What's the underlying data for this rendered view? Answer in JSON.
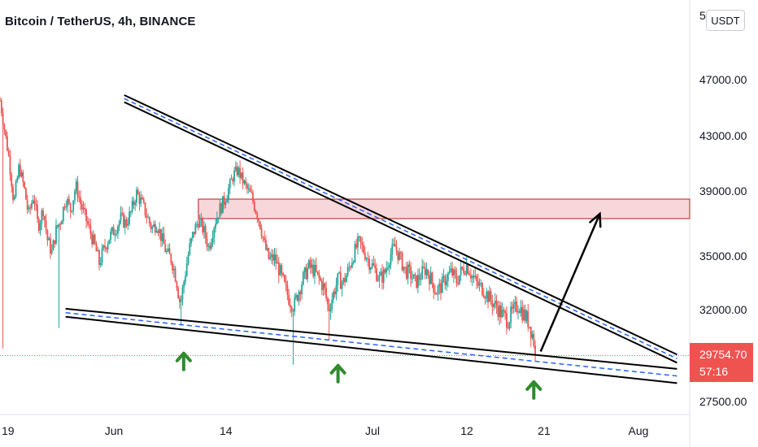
{
  "header": {
    "title": "Bitcoin / TetherUS, 4h, BINANCE",
    "currency_button": "USDT"
  },
  "last_price": {
    "value": "29754.70",
    "countdown": "57:16",
    "color": "#ef5350"
  },
  "colors": {
    "up": "#26a69a",
    "down": "#ef5350",
    "trendline": "#000000",
    "midline": "#2962ff",
    "zone_fill": "#f8d7da",
    "zone_border": "#b71c1c",
    "arrow_marker": "#2e8b2e"
  },
  "chart_data": {
    "type": "candlestick",
    "symbol": "BTCUSDT",
    "timeframe": "4h",
    "exchange": "BINANCE",
    "y_ticks": [
      27500,
      32000,
      35000,
      39000,
      43000,
      47000
    ],
    "y_tick_labels": [
      "27500.00",
      "32000.00",
      "35000.00",
      "39000.00",
      "43000.00",
      "47000.00"
    ],
    "y_top_partial_label": "5",
    "x_tick_labels": [
      "19",
      "Jun",
      "14",
      "Jul",
      "12",
      "21",
      "Aug"
    ],
    "x_tick_days": [
      -13,
      0,
      13,
      30,
      41,
      50,
      61
    ],
    "x_tick_dates": [
      "2021-05-19",
      "2021-06-01",
      "2021-06-14",
      "2021-07-01",
      "2021-07-12",
      "2021-07-21",
      "2021-08-01"
    ],
    "x_range_days": [
      -13.2,
      65.5
    ],
    "candles_close_path": [
      [
        -13.2,
        45500
      ],
      [
        -12.7,
        43500
      ],
      [
        -12.2,
        41500
      ],
      [
        -11.6,
        38200
      ],
      [
        -11.0,
        40800
      ],
      [
        -10.4,
        39200
      ],
      [
        -9.9,
        37500
      ],
      [
        -9.3,
        38800
      ],
      [
        -8.8,
        36800
      ],
      [
        -8.2,
        37900
      ],
      [
        -7.7,
        36000
      ],
      [
        -7.2,
        35200
      ],
      [
        -6.7,
        36600
      ],
      [
        -6.1,
        37300
      ],
      [
        -5.6,
        38600
      ],
      [
        -5.0,
        37800
      ],
      [
        -4.4,
        39400
      ],
      [
        -3.8,
        38100
      ],
      [
        -3.2,
        37200
      ],
      [
        -2.7,
        36400
      ],
      [
        -2.2,
        35600
      ],
      [
        -1.7,
        34600
      ],
      [
        -1.1,
        35500
      ],
      [
        -0.5,
        36200
      ],
      [
        0.2,
        36700
      ],
      [
        0.8,
        37300
      ],
      [
        1.4,
        37000
      ],
      [
        2.0,
        37700
      ],
      [
        2.6,
        38900
      ],
      [
        3.2,
        38300
      ],
      [
        3.8,
        37500
      ],
      [
        4.4,
        36700
      ],
      [
        5.0,
        37000
      ],
      [
        5.6,
        36000
      ],
      [
        6.1,
        35200
      ],
      [
        6.7,
        34800
      ],
      [
        7.2,
        33800
      ],
      [
        7.7,
        32300
      ],
      [
        8.2,
        33800
      ],
      [
        8.7,
        35300
      ],
      [
        9.2,
        36400
      ],
      [
        9.8,
        37200
      ],
      [
        10.4,
        36600
      ],
      [
        11.0,
        35500
      ],
      [
        11.6,
        36900
      ],
      [
        12.2,
        37800
      ],
      [
        12.8,
        38400
      ],
      [
        13.4,
        39300
      ],
      [
        13.9,
        40200
      ],
      [
        14.4,
        40500
      ],
      [
        14.9,
        39800
      ],
      [
        15.4,
        39200
      ],
      [
        16.0,
        38600
      ],
      [
        16.5,
        37800
      ],
      [
        17.0,
        36900
      ],
      [
        17.5,
        35600
      ],
      [
        18.0,
        34800
      ],
      [
        18.6,
        34900
      ],
      [
        19.2,
        34200
      ],
      [
        19.8,
        33300
      ],
      [
        20.4,
        32500
      ],
      [
        20.9,
        32200
      ],
      [
        21.4,
        33000
      ],
      [
        22.0,
        33800
      ],
      [
        22.6,
        34400
      ],
      [
        23.2,
        34200
      ],
      [
        23.8,
        33700
      ],
      [
        24.4,
        33200
      ],
      [
        24.9,
        32000
      ],
      [
        25.4,
        32800
      ],
      [
        26.0,
        33700
      ],
      [
        26.6,
        33500
      ],
      [
        27.2,
        34200
      ],
      [
        27.8,
        35100
      ],
      [
        28.4,
        35900
      ],
      [
        29.0,
        35300
      ],
      [
        29.6,
        34700
      ],
      [
        30.2,
        34300
      ],
      [
        30.8,
        33700
      ],
      [
        31.4,
        34000
      ],
      [
        32.0,
        35000
      ],
      [
        32.6,
        35600
      ],
      [
        33.2,
        34900
      ],
      [
        33.8,
        34200
      ],
      [
        34.4,
        34000
      ],
      [
        35.0,
        33500
      ],
      [
        35.6,
        33900
      ],
      [
        36.2,
        34300
      ],
      [
        36.8,
        33700
      ],
      [
        37.4,
        33000
      ],
      [
        38.0,
        33300
      ],
      [
        38.6,
        33800
      ],
      [
        39.2,
        34100
      ],
      [
        39.8,
        33600
      ],
      [
        40.4,
        34200
      ],
      [
        41.0,
        34500
      ],
      [
        41.6,
        33900
      ],
      [
        42.2,
        33400
      ],
      [
        42.8,
        33200
      ],
      [
        43.4,
        32800
      ],
      [
        44.0,
        32400
      ],
      [
        44.6,
        32100
      ],
      [
        45.2,
        31700
      ],
      [
        45.8,
        31500
      ],
      [
        46.4,
        31900
      ],
      [
        47.0,
        32300
      ],
      [
        47.6,
        31800
      ],
      [
        48.2,
        31400
      ],
      [
        48.7,
        30700
      ],
      [
        49.1,
        29754.7
      ]
    ],
    "wick_extremes": [
      {
        "x": -12.9,
        "low": 30100
      },
      {
        "x": -6.3,
        "low": 31100
      },
      {
        "x": 7.8,
        "low": 31200
      },
      {
        "x": 20.8,
        "low": 29300
      },
      {
        "x": 24.9,
        "low": 30500
      },
      {
        "x": 14.6,
        "high": 41200
      }
    ],
    "last_price": 29754.7,
    "drawings": {
      "upper_channel": {
        "line_a": [
          [
            1.2,
            45900
          ],
          [
            65.5,
            29800
          ]
        ],
        "line_b": [
          [
            1.2,
            45400
          ],
          [
            65.5,
            29400
          ]
        ],
        "midline": [
          [
            1.2,
            45650
          ],
          [
            65.5,
            29600
          ]
        ]
      },
      "lower_channel": {
        "line_a": [
          [
            -5.6,
            32050
          ],
          [
            65.5,
            29100
          ]
        ],
        "line_b": [
          [
            -5.6,
            31650
          ],
          [
            65.5,
            28400
          ]
        ],
        "midline": [
          [
            -5.6,
            31850
          ],
          [
            65.5,
            28750
          ]
        ]
      },
      "resistance_zone": {
        "x_start": 9.8,
        "x_end": 65.5,
        "y_low": 37300,
        "y_high": 38500
      },
      "target_arrow": {
        "from": [
          49.6,
          29950
        ],
        "to": [
          56.5,
          37600
        ]
      },
      "bounce_markers": [
        {
          "x": 8.1,
          "y": 30100
        },
        {
          "x": 26.0,
          "y": 29500
        },
        {
          "x": 48.8,
          "y": 28700
        }
      ]
    }
  }
}
